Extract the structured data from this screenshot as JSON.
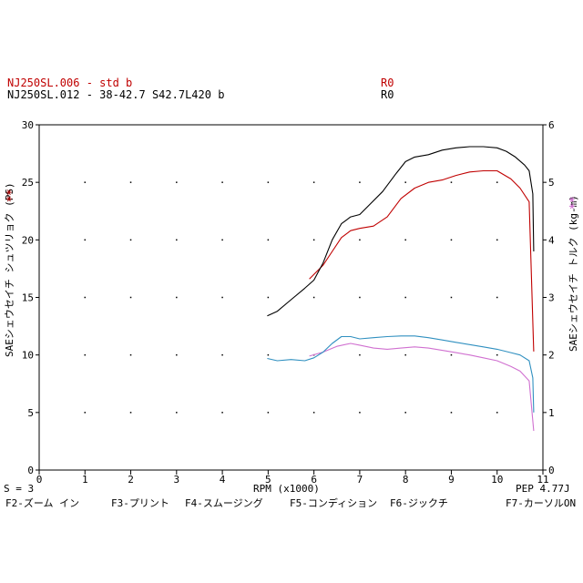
{
  "run1": {
    "label": "NJ250SL.006 - std b",
    "tag": "R0",
    "color": "#c00000"
  },
  "run2": {
    "label": "NJ250SL.012 - 38-42.7 S42.7L420 b",
    "tag": "R0",
    "color": "#000000"
  },
  "left_axis_label": "SAEシェウセイチ シュツリョク (PS)",
  "right_axis_label": "SAEシェウセイチ トルク (kg-m)",
  "left_markers": "**",
  "right_markers": "**",
  "x_axis_label": "RPM (x1000)",
  "smoothing": "S = 3",
  "pep": "PEP 4.77J",
  "function_keys": [
    "F2-ズーム イン",
    "F3-プリント",
    "F4-スムージング",
    "F5-コンディション",
    "F6-ジックチ",
    "F7-カーソルON"
  ],
  "chart_data": {
    "type": "line",
    "xlabel": "RPM (x1000)",
    "ylabel": "SAEシェウセイチ シュツリョク (PS)",
    "y2label": "SAEシェウセイチ トルク (kg-m)",
    "xlim": [
      0,
      11
    ],
    "ylim": [
      0,
      30
    ],
    "y2lim": [
      0,
      6
    ],
    "x_ticks": [
      0,
      1,
      2,
      3,
      4,
      5,
      6,
      7,
      8,
      9,
      10,
      11
    ],
    "y_ticks": [
      0,
      5,
      10,
      15,
      20,
      25,
      30
    ],
    "y2_ticks": [
      0,
      1,
      2,
      3,
      4,
      5,
      6
    ],
    "grid": true,
    "series": [
      {
        "name": "NJ250SL.006 - std b",
        "kind": "power",
        "axis": "left",
        "color": "#c00000",
        "x": [
          5.9,
          6.0,
          6.2,
          6.4,
          6.6,
          6.8,
          7.0,
          7.3,
          7.6,
          7.9,
          8.2,
          8.5,
          8.8,
          9.1,
          9.4,
          9.7,
          10.0,
          10.3,
          10.5,
          10.7,
          10.8
        ],
        "y": [
          16.6,
          17.0,
          17.8,
          19.0,
          20.2,
          20.8,
          21.0,
          21.2,
          22.0,
          23.6,
          24.5,
          25.0,
          25.2,
          25.6,
          25.9,
          26.0,
          26.0,
          25.3,
          24.5,
          23.3,
          10.3
        ]
      },
      {
        "name": "NJ250SL.012 - 38-42.7 S42.7L420 b",
        "kind": "power",
        "axis": "left",
        "color": "#000000",
        "x": [
          4.98,
          5.2,
          5.5,
          5.8,
          6.0,
          6.2,
          6.4,
          6.6,
          6.8,
          7.0,
          7.2,
          7.5,
          7.8,
          8.0,
          8.2,
          8.5,
          8.8,
          9.1,
          9.4,
          9.7,
          10.0,
          10.2,
          10.4,
          10.6,
          10.7,
          10.78,
          10.8
        ],
        "y": [
          13.4,
          13.8,
          14.8,
          15.8,
          16.5,
          18.0,
          20.0,
          21.4,
          22.0,
          22.2,
          23.0,
          24.2,
          25.8,
          26.8,
          27.2,
          27.4,
          27.8,
          28.0,
          28.1,
          28.1,
          28.0,
          27.7,
          27.2,
          26.5,
          26.0,
          24.0,
          19.0
        ]
      },
      {
        "name": "NJ250SL.006 - std b",
        "kind": "torque",
        "axis": "right",
        "color": "#d070d0",
        "x": [
          5.9,
          6.2,
          6.5,
          6.8,
          7.0,
          7.3,
          7.6,
          7.9,
          8.2,
          8.5,
          8.8,
          9.1,
          9.4,
          9.7,
          10.0,
          10.3,
          10.5,
          10.7,
          10.8
        ],
        "y": [
          1.98,
          2.05,
          2.15,
          2.2,
          2.17,
          2.12,
          2.1,
          2.12,
          2.14,
          2.12,
          2.08,
          2.04,
          2.0,
          1.95,
          1.9,
          1.8,
          1.72,
          1.55,
          0.68
        ]
      },
      {
        "name": "NJ250SL.012 - 38-42.7 S42.7L420 b",
        "kind": "torque",
        "axis": "right",
        "color": "#3090c0",
        "x": [
          4.98,
          5.2,
          5.5,
          5.8,
          6.0,
          6.2,
          6.4,
          6.6,
          6.8,
          7.0,
          7.3,
          7.6,
          7.9,
          8.2,
          8.5,
          8.8,
          9.1,
          9.4,
          9.7,
          10.0,
          10.3,
          10.5,
          10.7,
          10.78,
          10.8
        ],
        "y": [
          1.94,
          1.9,
          1.92,
          1.9,
          1.95,
          2.05,
          2.2,
          2.32,
          2.32,
          2.28,
          2.3,
          2.32,
          2.33,
          2.33,
          2.3,
          2.26,
          2.22,
          2.18,
          2.14,
          2.1,
          2.04,
          2.0,
          1.9,
          1.6,
          1.0
        ]
      }
    ]
  }
}
